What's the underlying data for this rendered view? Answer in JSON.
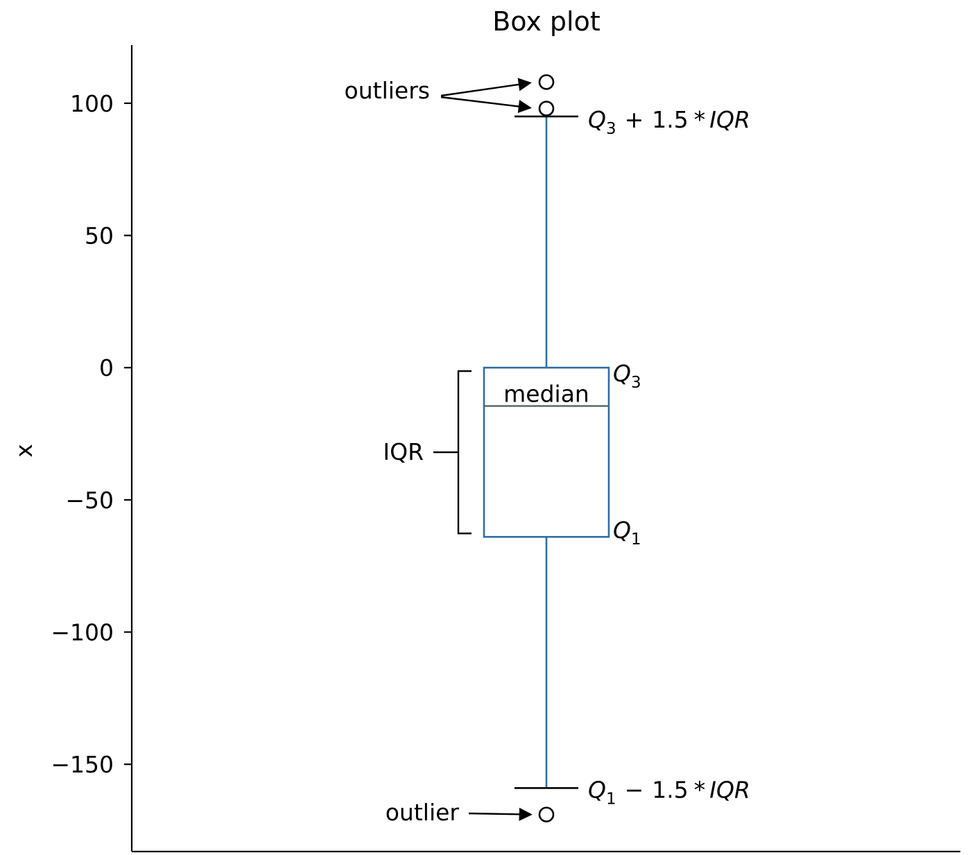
{
  "chart_data": {
    "type": "box",
    "title": "Box plot",
    "xlabel": "",
    "ylabel": "x",
    "ylim": [
      -183,
      122
    ],
    "yticks": [
      100,
      50,
      0,
      -50,
      -100,
      -150
    ],
    "ytick_labels": [
      "100",
      "50",
      "0",
      "−50",
      "−100",
      "−150"
    ],
    "grid": false,
    "box": {
      "q1": -64,
      "median": -14.5,
      "q3": 0,
      "whisker_low": -159,
      "whisker_high": 95,
      "outliers": [
        108,
        98,
        -169
      ]
    },
    "colors": {
      "box": "#2f6ea4",
      "median": "#5a6b5e",
      "outlier": "#000000",
      "annotation": "#000000"
    },
    "annotations": {
      "outliers_label": "outliers",
      "outlier_label": "outlier",
      "median_label": "median",
      "iqr_label": "IQR",
      "q3_label": {
        "symbol": "Q",
        "sub": "3"
      },
      "q1_label": {
        "symbol": "Q",
        "sub": "1"
      },
      "upper_fence_label": {
        "symbol": "Q",
        "sub": "3",
        "op": "+",
        "factor": "1.5",
        "star": "*",
        "term": "IQR"
      },
      "lower_fence_label": {
        "symbol": "Q",
        "sub": "1",
        "op": "−",
        "factor": "1.5",
        "star": "*",
        "term": "IQR"
      }
    }
  }
}
